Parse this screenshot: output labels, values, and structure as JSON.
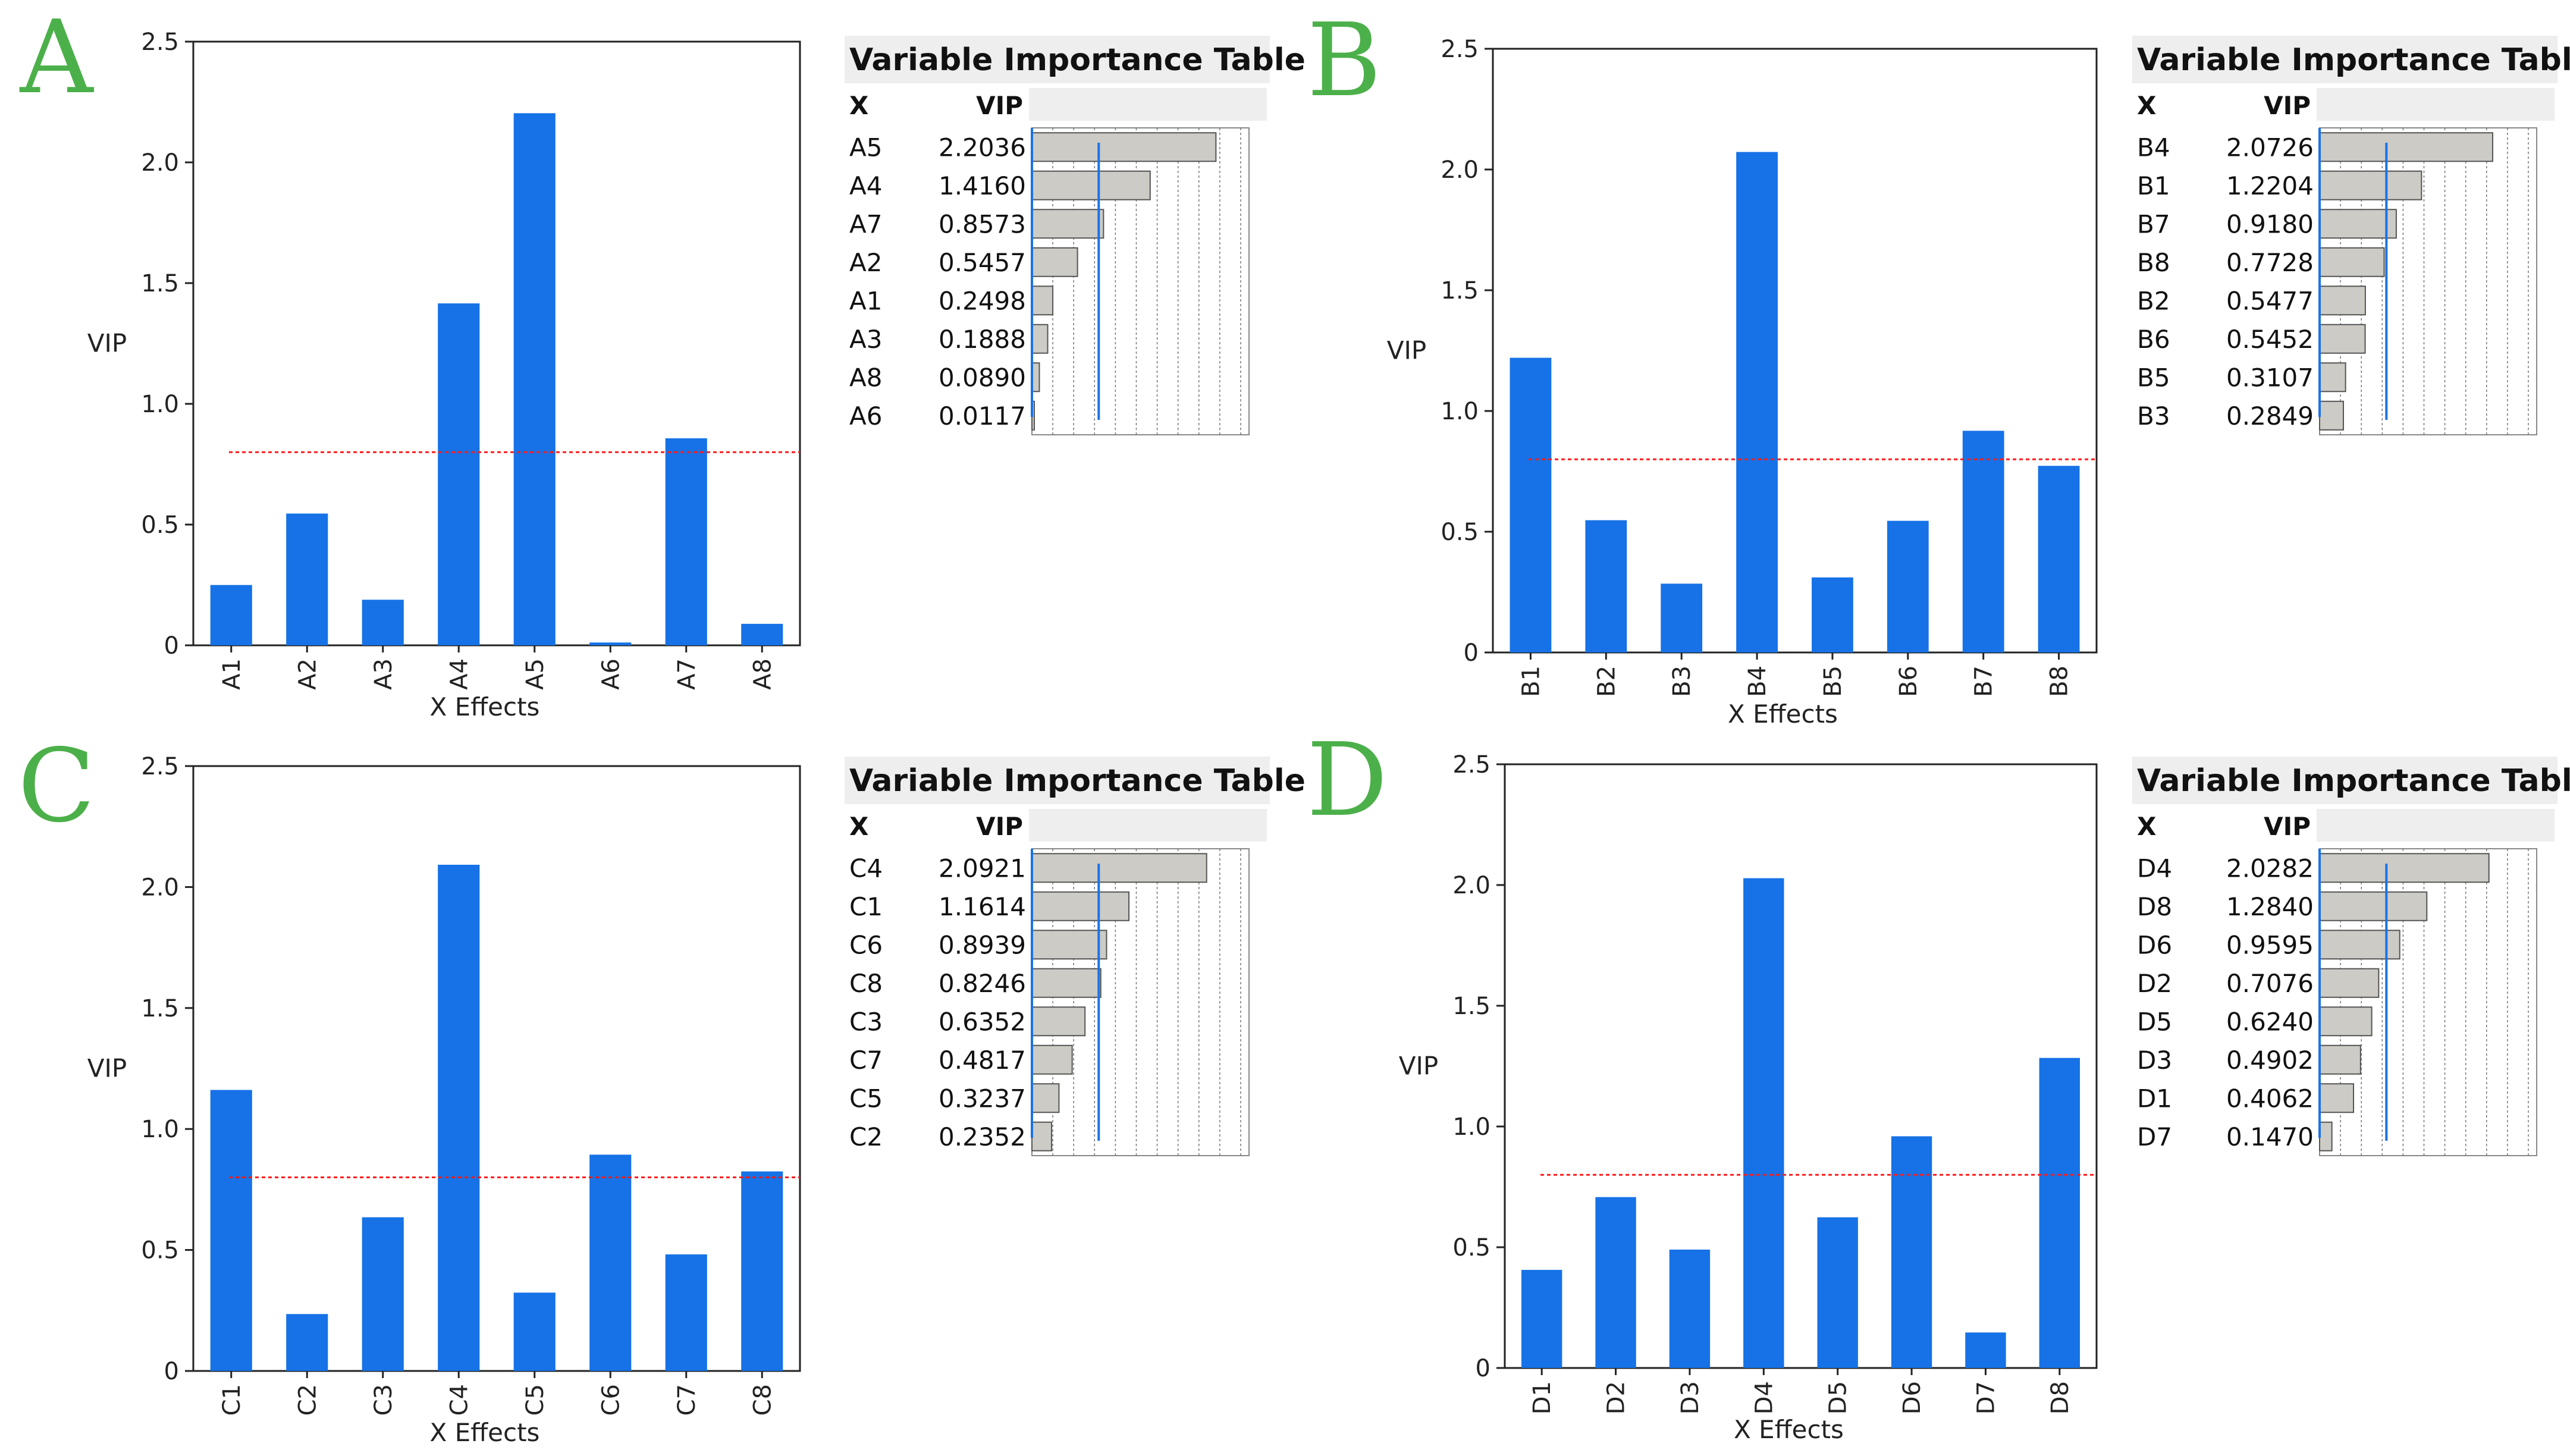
{
  "colors": {
    "bar": "#1672e6",
    "threshold": "#ff1a1a",
    "letter": "#4cb04a",
    "vip_bar": "#cdcbc5",
    "vip_ref": "#1a73e8",
    "table_title_bg": "#eeeeee"
  },
  "common": {
    "ylabel": "VIP",
    "xlabel": "X Effects",
    "table_title": "Variable Importance Table",
    "col_x": "X",
    "col_vip": "VIP",
    "y_ticks": [
      "0",
      "0.5",
      "1.0",
      "1.5",
      "2.0",
      "2.5"
    ]
  },
  "chart_data": [
    {
      "type": "bar",
      "panel": "A",
      "categories": [
        "A1",
        "A2",
        "A3",
        "A4",
        "A5",
        "A6",
        "A7",
        "A8"
      ],
      "values": [
        0.2498,
        0.5457,
        0.1888,
        1.416,
        2.2036,
        0.0117,
        0.8573,
        0.089
      ],
      "xlabel": "X Effects",
      "ylabel": "VIP",
      "ylim": [
        0,
        2.5
      ],
      "threshold": 0.8,
      "table": {
        "title": "Variable Importance Table",
        "rows": [
          {
            "x": "A5",
            "vip": "2.2036",
            "value": 2.2036
          },
          {
            "x": "A4",
            "vip": "1.4160",
            "value": 1.416
          },
          {
            "x": "A7",
            "vip": "0.8573",
            "value": 0.8573
          },
          {
            "x": "A2",
            "vip": "0.5457",
            "value": 0.5457
          },
          {
            "x": "A1",
            "vip": "0.2498",
            "value": 0.2498
          },
          {
            "x": "A3",
            "vip": "0.1888",
            "value": 0.1888
          },
          {
            "x": "A8",
            "vip": "0.0890",
            "value": 0.089
          },
          {
            "x": "A6",
            "vip": "0.0117",
            "value": 0.0117
          }
        ]
      }
    },
    {
      "type": "bar",
      "panel": "B",
      "categories": [
        "B1",
        "B2",
        "B3",
        "B4",
        "B5",
        "B6",
        "B7",
        "B8"
      ],
      "values": [
        1.2204,
        0.5477,
        0.2849,
        2.0726,
        0.3107,
        0.5452,
        0.918,
        0.7728
      ],
      "xlabel": "X Effects",
      "ylabel": "VIP",
      "ylim": [
        0,
        2.5
      ],
      "threshold": 0.8,
      "table": {
        "title": "Variable Importance Table",
        "rows": [
          {
            "x": "B4",
            "vip": "2.0726",
            "value": 2.0726
          },
          {
            "x": "B1",
            "vip": "1.2204",
            "value": 1.2204
          },
          {
            "x": "B7",
            "vip": "0.9180",
            "value": 0.918
          },
          {
            "x": "B8",
            "vip": "0.7728",
            "value": 0.7728
          },
          {
            "x": "B2",
            "vip": "0.5477",
            "value": 0.5477
          },
          {
            "x": "B6",
            "vip": "0.5452",
            "value": 0.5452
          },
          {
            "x": "B5",
            "vip": "0.3107",
            "value": 0.3107
          },
          {
            "x": "B3",
            "vip": "0.2849",
            "value": 0.2849
          }
        ]
      }
    },
    {
      "type": "bar",
      "panel": "C",
      "categories": [
        "C1",
        "C2",
        "C3",
        "C4",
        "C5",
        "C6",
        "C7",
        "C8"
      ],
      "values": [
        1.1614,
        0.2352,
        0.6352,
        2.0921,
        0.3237,
        0.8939,
        0.4817,
        0.8246
      ],
      "xlabel": "X Effects",
      "ylabel": "VIP",
      "ylim": [
        0,
        2.5
      ],
      "threshold": 0.8,
      "table": {
        "title": "Variable Importance Table",
        "rows": [
          {
            "x": "C4",
            "vip": "2.0921",
            "value": 2.0921
          },
          {
            "x": "C1",
            "vip": "1.1614",
            "value": 1.1614
          },
          {
            "x": "C6",
            "vip": "0.8939",
            "value": 0.8939
          },
          {
            "x": "C8",
            "vip": "0.8246",
            "value": 0.8246
          },
          {
            "x": "C3",
            "vip": "0.6352",
            "value": 0.6352
          },
          {
            "x": "C7",
            "vip": "0.4817",
            "value": 0.4817
          },
          {
            "x": "C5",
            "vip": "0.3237",
            "value": 0.3237
          },
          {
            "x": "C2",
            "vip": "0.2352",
            "value": 0.2352
          }
        ]
      }
    },
    {
      "type": "bar",
      "panel": "D",
      "categories": [
        "D1",
        "D2",
        "D3",
        "D4",
        "D5",
        "D6",
        "D7",
        "D8"
      ],
      "values": [
        0.4062,
        0.7076,
        0.4902,
        2.0282,
        0.624,
        0.9595,
        0.147,
        1.284
      ],
      "xlabel": "X Effects",
      "ylabel": "VIP",
      "ylim": [
        0,
        2.5
      ],
      "threshold": 0.8,
      "table": {
        "title": "Variable Importance Table",
        "rows": [
          {
            "x": "D4",
            "vip": "2.0282",
            "value": 2.0282
          },
          {
            "x": "D8",
            "vip": "1.2840",
            "value": 1.284
          },
          {
            "x": "D6",
            "vip": "0.9595",
            "value": 0.9595
          },
          {
            "x": "D2",
            "vip": "0.7076",
            "value": 0.7076
          },
          {
            "x": "D5",
            "vip": "0.6240",
            "value": 0.624
          },
          {
            "x": "D3",
            "vip": "0.4902",
            "value": 0.4902
          },
          {
            "x": "D1",
            "vip": "0.4062",
            "value": 0.4062
          },
          {
            "x": "D7",
            "vip": "0.1470",
            "value": 0.147
          }
        ]
      }
    }
  ]
}
